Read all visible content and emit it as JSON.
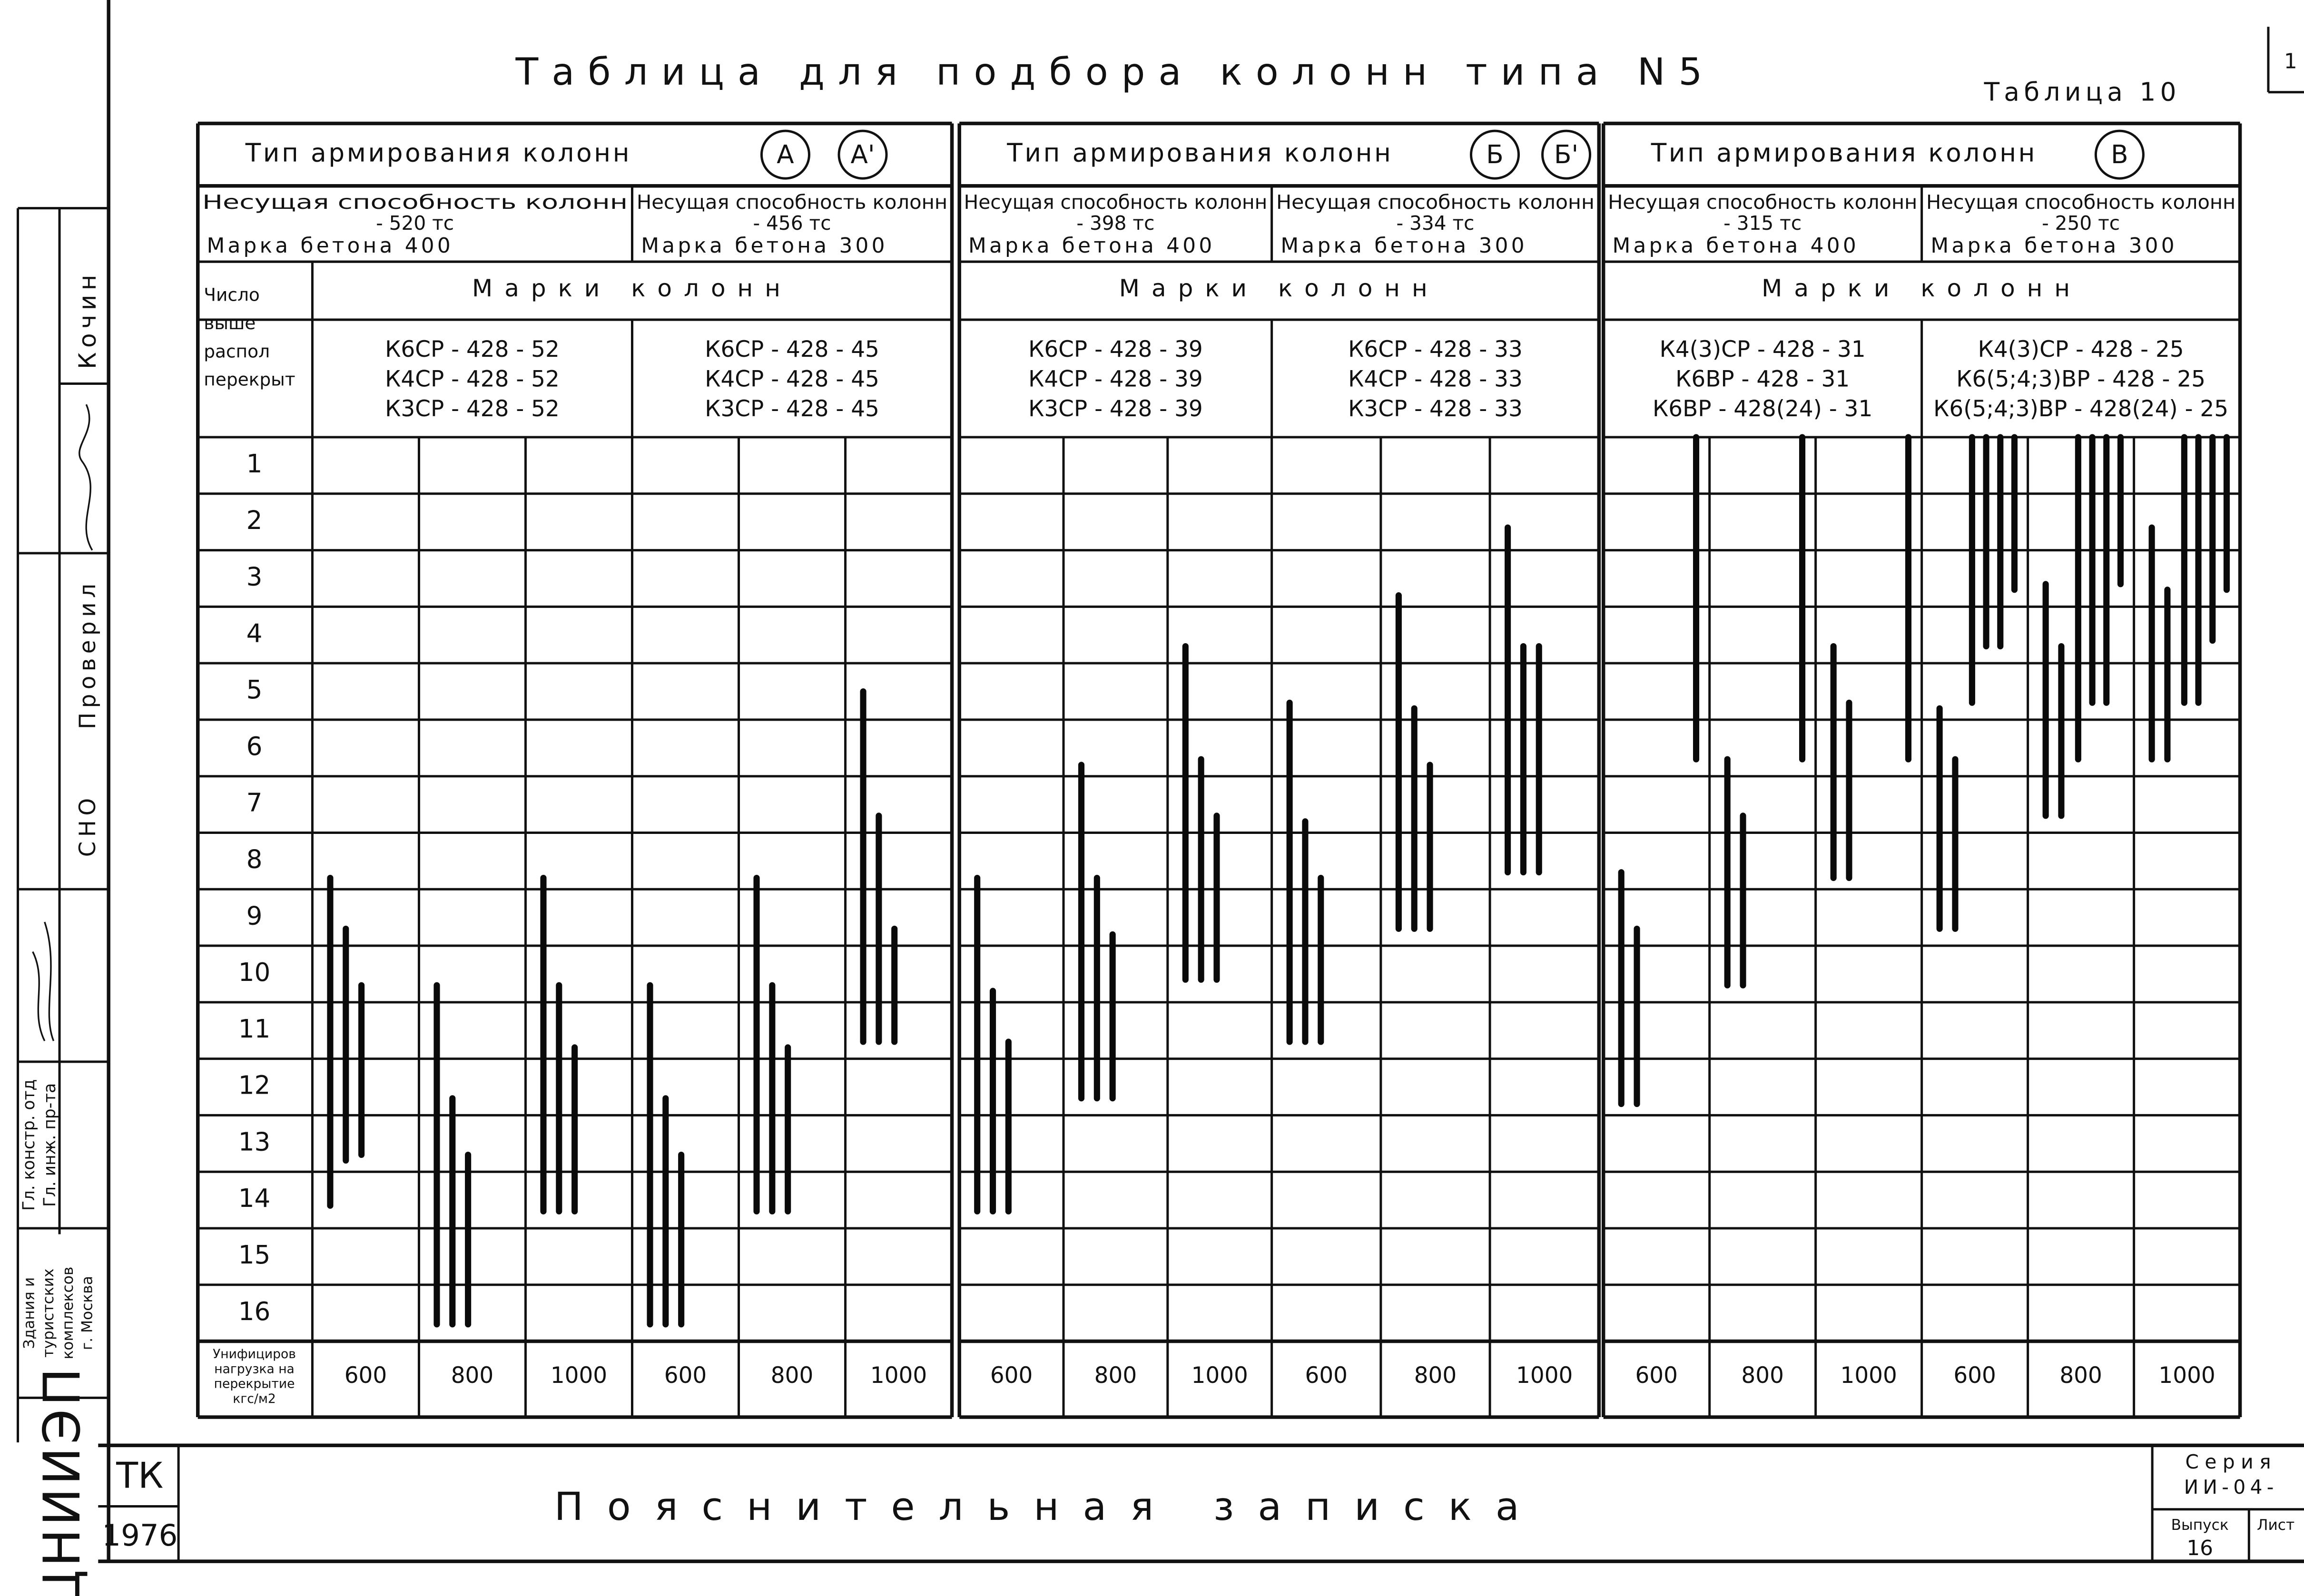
{
  "header": {
    "title": "Таблица для подбора колонн типа N5",
    "table_number": "Таблица 10",
    "page_corner": "1"
  },
  "table": {
    "row_header": [
      "Число",
      "выше",
      "распол",
      "перекрыт"
    ],
    "load_header": [
      "Унифициров",
      "нагрузка на",
      "перекрытие",
      "кгс/м2"
    ],
    "rows": [
      1,
      2,
      3,
      4,
      5,
      6,
      7,
      8,
      9,
      10,
      11,
      12,
      13,
      14,
      15,
      16
    ],
    "groups": [
      {
        "label": "Тип армирования колонн",
        "types": [
          "А",
          "А'"
        ],
        "marks_header": "Марки колонн",
        "subgroups": [
          {
            "capacity_label": "Несущая способность колонн",
            "capacity": "- 520 тс",
            "concrete": "Марка бетона 400",
            "marks": [
              "К6СР - 428 - 52",
              "К4СР - 428 - 52",
              "К3СР - 428 - 52"
            ],
            "columns": [
              {
                "load": 600,
                "bars": [
                  [
                    8.3,
                    14.1
                  ],
                  [
                    9.2,
                    13.3
                  ],
                  [
                    10.2,
                    13.2
                  ]
                ]
              },
              {
                "load": 800,
                "bars": [
                  [
                    10.2,
                    16.2
                  ],
                  [
                    12.2,
                    16.2
                  ],
                  [
                    13.2,
                    16.2
                  ]
                ]
              },
              {
                "load": 1000,
                "bars": [
                  [
                    8.3,
                    14.2
                  ],
                  [
                    10.2,
                    14.2
                  ],
                  [
                    11.3,
                    14.2
                  ]
                ]
              }
            ]
          },
          {
            "capacity_label": "Несущая способность колонн",
            "capacity": "- 456 тс",
            "concrete": "Марка бетона 300",
            "marks": [
              "К6СР - 428 - 45",
              "К4СР - 428 - 45",
              "К3СР - 428 - 45"
            ],
            "columns": [
              {
                "load": 600,
                "bars": [
                  [
                    10.2,
                    16.2
                  ],
                  [
                    12.2,
                    16.2
                  ],
                  [
                    13.2,
                    16.2
                  ]
                ]
              },
              {
                "load": 800,
                "bars": [
                  [
                    8.3,
                    14.2
                  ],
                  [
                    10.2,
                    14.2
                  ],
                  [
                    11.3,
                    14.2
                  ]
                ]
              },
              {
                "load": 1000,
                "bars": [
                  [
                    5.0,
                    11.2
                  ],
                  [
                    7.2,
                    11.2
                  ],
                  [
                    9.2,
                    11.2
                  ]
                ]
              }
            ]
          }
        ]
      },
      {
        "label": "Тип армирования колонн",
        "types": [
          "Б",
          "Б'"
        ],
        "marks_header": "Марки колонн",
        "subgroups": [
          {
            "capacity_label": "Несущая способность колонн",
            "capacity": "- 398 тс",
            "concrete": "Марка бетона 400",
            "marks": [
              "К6СР - 428 - 39",
              "К4СР - 428 - 39",
              "К3СР - 428 - 39"
            ],
            "columns": [
              {
                "load": 600,
                "bars": [
                  [
                    8.3,
                    14.2
                  ],
                  [
                    10.3,
                    14.2
                  ],
                  [
                    11.2,
                    14.2
                  ]
                ]
              },
              {
                "load": 800,
                "bars": [
                  [
                    6.3,
                    12.2
                  ],
                  [
                    8.3,
                    12.2
                  ],
                  [
                    9.3,
                    12.2
                  ]
                ]
              },
              {
                "load": 1000,
                "bars": [
                  [
                    4.2,
                    10.1
                  ],
                  [
                    6.2,
                    10.1
                  ],
                  [
                    7.2,
                    10.1
                  ]
                ]
              }
            ]
          },
          {
            "capacity_label": "Несущая способность колонн",
            "capacity": "- 334 тс",
            "concrete": "Марка бетона 300",
            "marks": [
              "К6СР - 428 - 33",
              "К4СР - 428 - 33",
              "К3СР - 428 - 33"
            ],
            "columns": [
              {
                "load": 600,
                "bars": [
                  [
                    5.2,
                    11.2
                  ],
                  [
                    7.3,
                    11.2
                  ],
                  [
                    8.3,
                    11.2
                  ]
                ]
              },
              {
                "load": 800,
                "bars": [
                  [
                    3.3,
                    9.2
                  ],
                  [
                    5.3,
                    9.2
                  ],
                  [
                    6.3,
                    9.2
                  ]
                ]
              },
              {
                "load": 1000,
                "bars": [
                  [
                    2.1,
                    8.2
                  ],
                  [
                    4.2,
                    8.2
                  ],
                  [
                    4.2,
                    8.2
                  ]
                ]
              }
            ]
          }
        ]
      },
      {
        "label": "Тип армирования колонн",
        "types": [
          "В"
        ],
        "marks_header": "Марки колонн",
        "subgroups": [
          {
            "capacity_label": "Несущая способность колонн",
            "capacity": "- 315 тс",
            "concrete": "Марка бетона 400",
            "marks": [
              "К4(3)СР - 428 - 31",
              "К6ВР - 428 - 31",
              "К6ВР - 428(24) - 31"
            ],
            "columns": [
              {
                "load": 600,
                "bars": [
                  [
                    8.2,
                    12.3
                  ],
                  [
                    9.2,
                    12.3
                  ],
                  [
                    0.5,
                    6.2
                  ]
                ]
              },
              {
                "load": 800,
                "bars": [
                  [
                    6.2,
                    10.2
                  ],
                  [
                    7.2,
                    10.2
                  ],
                  [
                    0.5,
                    6.2
                  ]
                ]
              },
              {
                "load": 1000,
                "bars": [
                  [
                    4.2,
                    8.3
                  ],
                  [
                    5.2,
                    8.3
                  ],
                  [
                    0.5,
                    6.2
                  ]
                ]
              }
            ]
          },
          {
            "capacity_label": "Несущая способность колонн",
            "capacity": "- 250 тс",
            "concrete": "Марка бетона 300",
            "marks": [
              "К4(3)СР - 428 - 25",
              "К6(5;4;3)ВР - 428 - 25",
              "К6(5;4;3)ВР - 428(24) - 25"
            ],
            "columns": [
              {
                "load": 600,
                "bars": [
                  [
                    5.3,
                    9.2
                  ],
                  [
                    6.2,
                    9.2
                  ],
                  [
                    0.5,
                    5.2
                  ],
                  [
                    0.5,
                    4.2
                  ],
                  [
                    0.5,
                    4.2
                  ],
                  [
                    0.5,
                    3.2
                  ]
                ]
              },
              {
                "load": 800,
                "bars": [
                  [
                    3.1,
                    7.2
                  ],
                  [
                    4.2,
                    7.2
                  ],
                  [
                    0.5,
                    6.2
                  ],
                  [
                    0.5,
                    5.2
                  ],
                  [
                    0.5,
                    5.2
                  ],
                  [
                    0.5,
                    3.1
                  ]
                ]
              },
              {
                "load": 1000,
                "bars": [
                  [
                    2.1,
                    6.2
                  ],
                  [
                    3.2,
                    6.2
                  ],
                  [
                    0.5,
                    5.2
                  ],
                  [
                    0.5,
                    5.2
                  ],
                  [
                    0.5,
                    4.1
                  ],
                  [
                    0.5,
                    3.2
                  ]
                ]
              }
            ]
          }
        ]
      }
    ]
  },
  "footer": {
    "code": "ТК",
    "year": "1976",
    "title": "Пояснительная записка",
    "series_label": "Серия",
    "series": "ИИ-04-",
    "issue_label": "Выпуск",
    "issue": "16",
    "sheet_label": "Лист"
  },
  "stamp": {
    "name": "Кочин",
    "checked": "Проверил",
    "dept": "СНО",
    "chief_dept": "Гл. констр. отд",
    "chief_eng": "Гл. инж. пр-та",
    "org_lines": [
      "Здания и",
      "туристских",
      "комплексов",
      "г. Москва"
    ],
    "institute": "ЦНИИЭП"
  }
}
